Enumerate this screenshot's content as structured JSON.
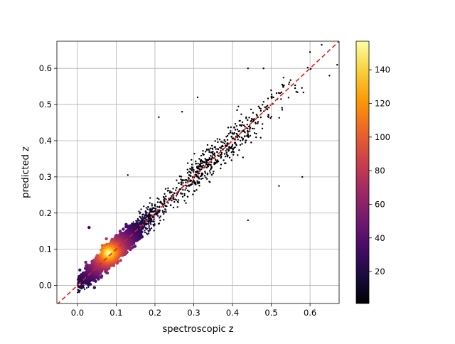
{
  "chart_data": {
    "type": "scatter",
    "title": "",
    "xlabel": "spectroscopic z",
    "ylabel": "predicted z",
    "xlim": [
      -0.053,
      0.675
    ],
    "ylim": [
      -0.05,
      0.675
    ],
    "xticks": [
      0.0,
      0.1,
      0.2,
      0.3,
      0.4,
      0.5,
      0.6
    ],
    "xtick_labels": [
      "0.0",
      "0.1",
      "0.2",
      "0.3",
      "0.4",
      "0.5",
      "0.6"
    ],
    "yticks": [
      0.0,
      0.1,
      0.2,
      0.3,
      0.4,
      0.5,
      0.6
    ],
    "ytick_labels": [
      "0.0",
      "0.1",
      "0.2",
      "0.3",
      "0.4",
      "0.5",
      "0.6"
    ],
    "grid": true,
    "colormap": "inferno",
    "colorbar": {
      "range": [
        1,
        157
      ],
      "ticks": [
        20,
        40,
        60,
        80,
        100,
        120,
        140
      ],
      "tick_labels": [
        "20",
        "40",
        "60",
        "80",
        "100",
        "120",
        "140"
      ],
      "colors": [
        "#000004",
        "#1b0c41",
        "#4a0c6b",
        "#781c6d",
        "#a52c60",
        "#cf4446",
        "#ed6925",
        "#fb9b06",
        "#f7d13d",
        "#fcffa4"
      ]
    },
    "reference_line": {
      "x": [
        -0.053,
        0.675
      ],
      "y": [
        -0.053,
        0.675
      ],
      "style": "dashed",
      "color": "#e41a1c"
    },
    "scatter_summary": {
      "relation": "predicted z ≈ spectroscopic z",
      "density_peak": [
        0.08,
        0.09
      ],
      "x_range_of_points": [
        0.0,
        0.675
      ],
      "outliers": [
        [
          0.21,
          0.465
        ],
        [
          0.27,
          0.48
        ],
        [
          0.31,
          0.52
        ],
        [
          0.44,
          0.6
        ],
        [
          0.48,
          0.6
        ],
        [
          0.44,
          0.18
        ],
        [
          0.52,
          0.275
        ],
        [
          0.58,
          0.3
        ],
        [
          0.6,
          0.645
        ],
        [
          0.63,
          0.665
        ],
        [
          0.65,
          0.58
        ],
        [
          0.67,
          0.61
        ],
        [
          0.09,
          0.07
        ],
        [
          0.13,
          0.305
        ],
        [
          0.03,
          0.16
        ]
      ]
    }
  }
}
